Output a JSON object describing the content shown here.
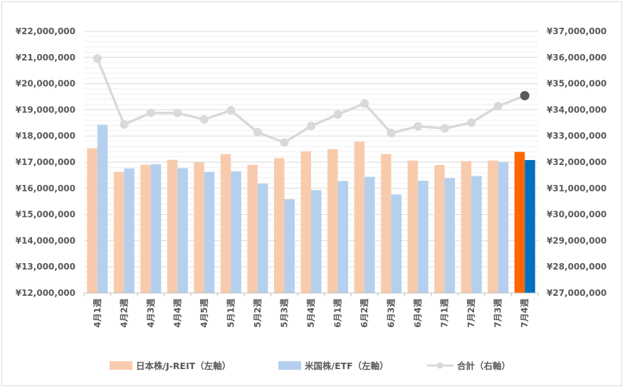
{
  "chart_data": {
    "type": "bar",
    "categories": [
      "4月1週",
      "4月2週",
      "4月3週",
      "4月4週",
      "4月5週",
      "5月1週",
      "5月2週",
      "5月3週",
      "5月4週",
      "6月1週",
      "6月2週",
      "6月3週",
      "6月4週",
      "7月1週",
      "7月2週",
      "7月3週",
      "7月4週"
    ],
    "series": [
      {
        "name": "日本株/J-REIT（左軸）",
        "axis": "left",
        "kind": "bar",
        "color": "#f8cbad",
        "highlight_color": "#ff6600",
        "values": [
          17530000,
          16630000,
          16900000,
          17090000,
          16990000,
          17310000,
          16900000,
          17150000,
          17420000,
          17500000,
          17780000,
          17310000,
          17060000,
          16890000,
          17040000,
          17060000,
          17390000
        ]
      },
      {
        "name": "米国株/ETF（左軸）",
        "axis": "left",
        "kind": "bar",
        "color": "#b4d0ee",
        "highlight_color": "#0070c0",
        "values": [
          18430000,
          16760000,
          16920000,
          16770000,
          16630000,
          16650000,
          16180000,
          15580000,
          15930000,
          16280000,
          16440000,
          15760000,
          16290000,
          16390000,
          16470000,
          17000000,
          17080000
        ]
      },
      {
        "name": "合計（右軸）",
        "axis": "right",
        "kind": "line",
        "color": "#d9d9d9",
        "highlight_color": "#595959",
        "values": [
          35960000,
          33440000,
          33880000,
          33880000,
          33630000,
          33980000,
          33140000,
          32750000,
          33380000,
          33820000,
          34240000,
          33110000,
          33370000,
          33290000,
          33510000,
          34140000,
          34540000
        ]
      }
    ],
    "left_axis": {
      "min": 12000000,
      "max": 22000000,
      "step": 1000000,
      "prefix": "¥"
    },
    "right_axis": {
      "min": 27000000,
      "max": 37000000,
      "step": 1000000,
      "prefix": "¥"
    },
    "left_ticks": [
      "¥12,000,000",
      "¥13,000,000",
      "¥14,000,000",
      "¥15,000,000",
      "¥16,000,000",
      "¥17,000,000",
      "¥18,000,000",
      "¥19,000,000",
      "¥20,000,000",
      "¥21,000,000",
      "¥22,000,000"
    ],
    "right_ticks": [
      "¥27,000,000",
      "¥28,000,000",
      "¥29,000,000",
      "¥30,000,000",
      "¥31,000,000",
      "¥32,000,000",
      "¥33,000,000",
      "¥34,000,000",
      "¥35,000,000",
      "¥36,000,000",
      "¥37,000,000"
    ],
    "highlight_index": 16,
    "grid": true,
    "minor_grid": true,
    "legend_position": "bottom"
  }
}
